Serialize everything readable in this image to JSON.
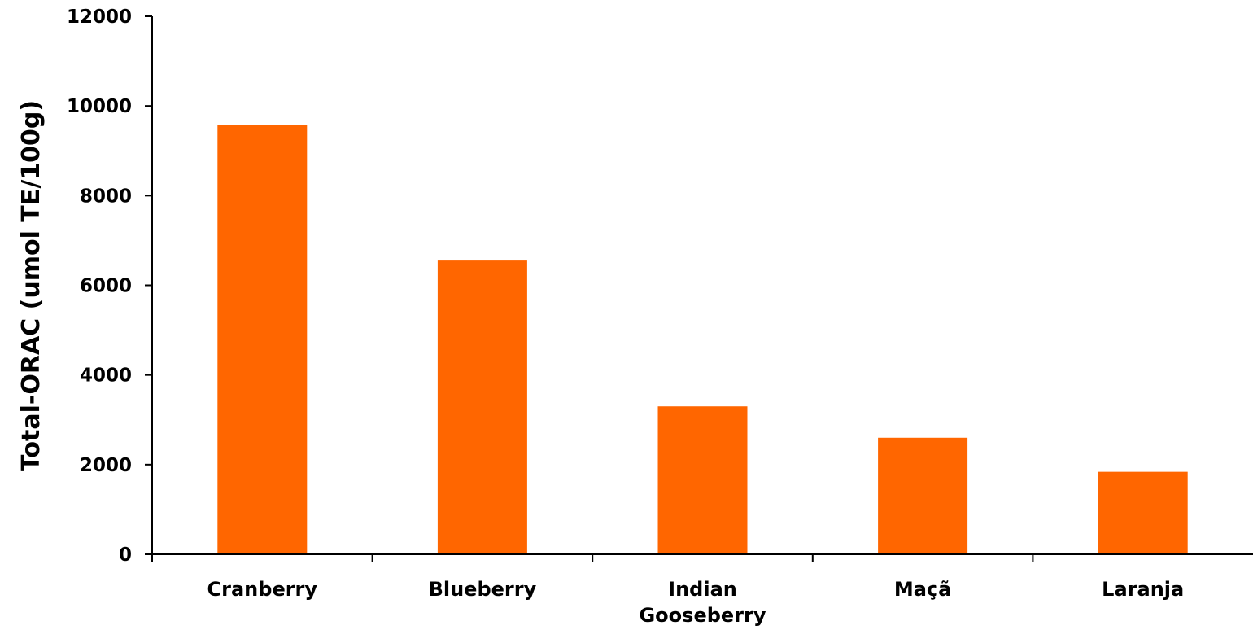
{
  "chart_data": {
    "type": "bar",
    "title": "",
    "xlabel": "",
    "ylabel": "Total-ORAC (umol TE/100g)",
    "categories": [
      "Cranberry",
      "Blueberry",
      "Indian Gooseberry",
      "Maçã",
      "Laranja"
    ],
    "category_lines": [
      [
        "Cranberry"
      ],
      [
        "Blueberry"
      ],
      [
        "Indian",
        "Gooseberry"
      ],
      [
        "Maçã"
      ],
      [
        "Laranja"
      ]
    ],
    "values": [
      9584,
      6552,
      3300,
      2600,
      1840
    ],
    "ylim": [
      0,
      12000
    ],
    "yticks": [
      0,
      2000,
      4000,
      6000,
      8000,
      10000,
      12000
    ],
    "ytick_labels": [
      "0",
      "2000",
      "4000",
      "6000",
      "8000",
      "10000",
      "12000"
    ],
    "bar_color": "#ff6600",
    "grid": false,
    "legend": "none"
  }
}
